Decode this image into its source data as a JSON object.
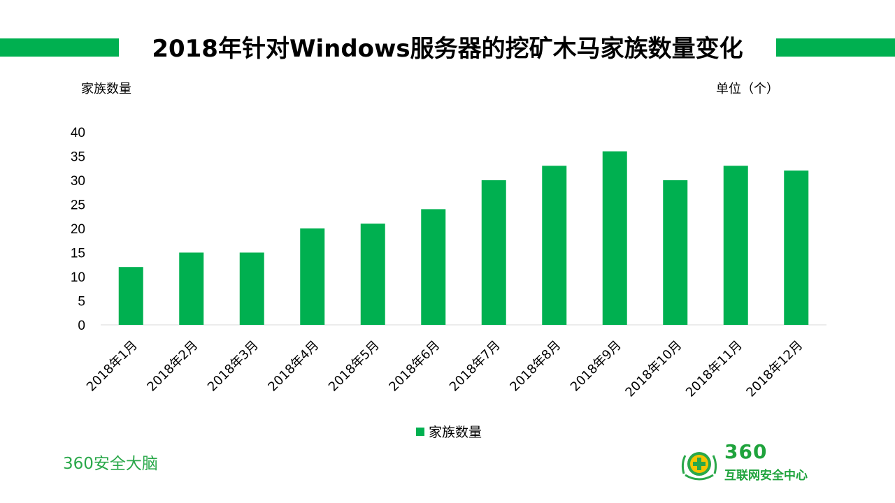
{
  "title": "2018年针对Windows服务器的挖矿木马家族数量变化",
  "ylabel_top": "家族数量",
  "unit_label": "单位（个）",
  "brand_text": "360安全大脑",
  "logo": {
    "number": "360",
    "subtitle": "互联网安全中心",
    "icon": "360-plus-emblem-icon"
  },
  "colors": {
    "bar": "#00b050",
    "accent": "#00b050"
  },
  "chart_data": {
    "type": "bar",
    "categories": [
      "2018年1月",
      "2018年2月",
      "2018年3月",
      "2018年4月",
      "2018年5月",
      "2018年6月",
      "2018年7月",
      "2018年8月",
      "2018年9月",
      "2018年10月",
      "2018年11月",
      "2018年12月"
    ],
    "series": [
      {
        "name": "家族数量",
        "values": [
          12,
          15,
          15,
          20,
          21,
          24,
          30,
          33,
          36,
          30,
          33,
          32
        ]
      }
    ],
    "ylim": [
      0,
      40
    ],
    "yticks": [
      0,
      5,
      10,
      15,
      20,
      25,
      30,
      35,
      40
    ],
    "grid": false,
    "legend": "bottom"
  }
}
